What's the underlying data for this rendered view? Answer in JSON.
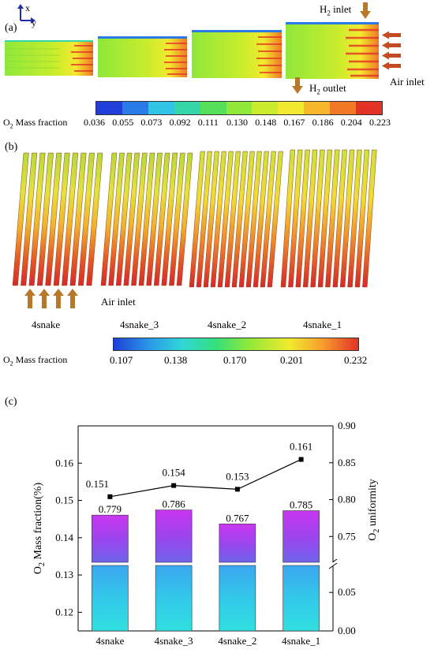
{
  "panel_a": {
    "letter": "(a)",
    "axis_x": "x",
    "axis_y": "y",
    "h2_inlet": "H",
    "h2_inlet_sub": "2",
    "h2_inlet_rest": " inlet",
    "h2_outlet": "H",
    "h2_outlet_sub": "2",
    "h2_outlet_rest": " outlet",
    "air_inlet": "Air inlet",
    "colorbar_label_pre": "O",
    "colorbar_label_sub": "2",
    "colorbar_label_rest": " Mass fraction",
    "colorbar_ticks": [
      "0.036",
      "0.055",
      "0.073",
      "0.092",
      "0.111",
      "0.130",
      "0.148",
      "0.167",
      "0.186",
      "0.204",
      "0.223"
    ],
    "colorbar_colors": [
      "#1f3fd8",
      "#2a7be8",
      "#31c4e6",
      "#35d6a8",
      "#56e05a",
      "#8fe83a",
      "#c8ec2c",
      "#f2ea2e",
      "#f7b72c",
      "#f07826",
      "#e23226"
    ]
  },
  "panel_b": {
    "letter": "(b)",
    "air_inlet": "Air inlet",
    "designs": [
      "4snake",
      "4snake_3",
      "4snake_2",
      "4snake_1"
    ],
    "colorbar_label_pre": "O",
    "colorbar_label_sub": "2",
    "colorbar_label_rest": " Mass fraction",
    "colorbar_ticks": [
      "0.107",
      "0.138",
      "0.170",
      "0.201",
      "0.232"
    ]
  },
  "panel_c": {
    "letter": "(c)"
  },
  "chart_data": {
    "type": "bar",
    "categories": [
      "4snake",
      "4snake_3",
      "4snake_2",
      "4snake_1"
    ],
    "bar_series": {
      "name": "O2 uniformity",
      "values": [
        0.779,
        0.786,
        0.767,
        0.785
      ],
      "labels": [
        "0.779",
        "0.786",
        "0.767",
        "0.785"
      ]
    },
    "line_series": {
      "name": "O2 Mass fraction(%)",
      "values": [
        0.151,
        0.154,
        0.153,
        0.161
      ],
      "labels": [
        "0.151",
        "0.154",
        "0.153",
        "0.161"
      ]
    },
    "left_axis": {
      "label_pre": "O",
      "label_sub": "2",
      "label_rest": " Mass fraction(%)",
      "ticks": [
        "0.12",
        "0.13",
        "0.14",
        "0.15",
        "0.16"
      ],
      "range": [
        0.115,
        0.17
      ]
    },
    "right_axis": {
      "label_pre": "O",
      "label_sub": "2",
      "label_rest": " uniformity",
      "ticks_upper": [
        "0.75",
        "0.80",
        "0.85",
        "0.90"
      ],
      "ticks_lower": [
        "0.00",
        "0.05"
      ],
      "range_upper": [
        0.715,
        0.9
      ],
      "range_lower": [
        0.0,
        0.085
      ]
    },
    "axis_break": true
  }
}
